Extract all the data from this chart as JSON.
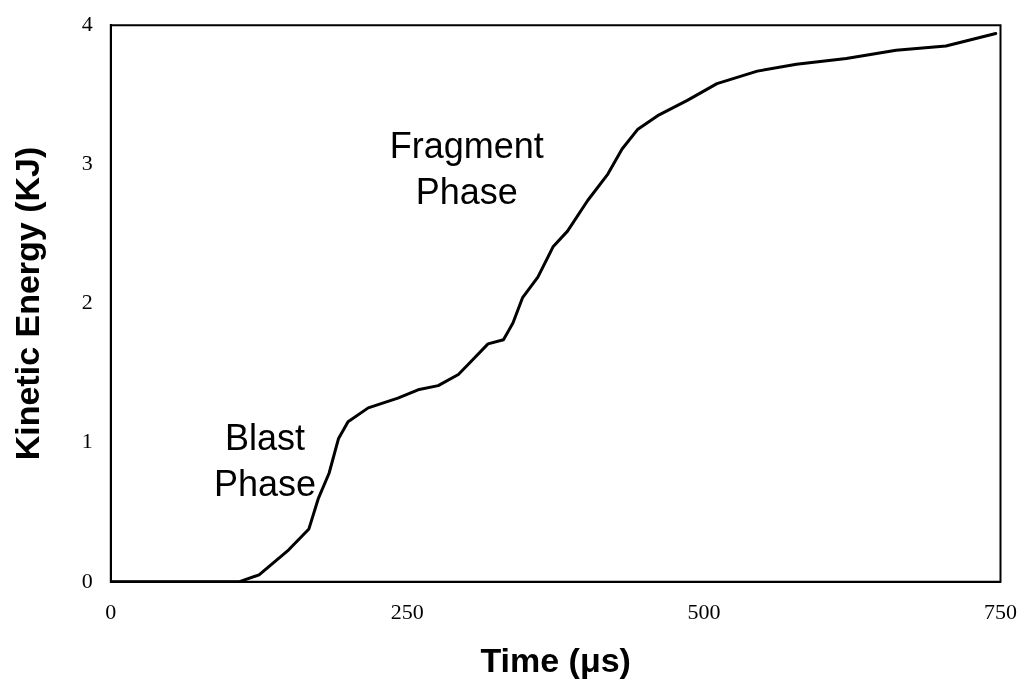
{
  "chart_data": {
    "type": "line",
    "xlabel": "Time (μs)",
    "ylabel": "Kinetic Energy (KJ)",
    "x": [
      0,
      108,
      125,
      150,
      167,
      175,
      184,
      192,
      200,
      217,
      242,
      259,
      276,
      293,
      301,
      318,
      331,
      339,
      347,
      360,
      373,
      385,
      402,
      419,
      431,
      444,
      461,
      486,
      511,
      545,
      578,
      620,
      662,
      704,
      746
    ],
    "series": [
      {
        "color": "#000000",
        "values": [
          0,
          0,
          0.05,
          0.23,
          0.38,
          0.6,
          0.78,
          1.03,
          1.15,
          1.25,
          1.32,
          1.38,
          1.41,
          1.49,
          1.56,
          1.71,
          1.74,
          1.86,
          2.04,
          2.19,
          2.41,
          2.52,
          2.74,
          2.93,
          3.11,
          3.25,
          3.35,
          3.46,
          3.58,
          3.67,
          3.72,
          3.76,
          3.82,
          3.85,
          3.94
        ]
      }
    ],
    "xlim": [
      0,
      750
    ],
    "xticks": [
      0,
      250,
      500,
      750
    ],
    "ylim": [
      0,
      4
    ],
    "yticks": [
      0,
      1,
      2,
      3,
      4
    ],
    "grid": false,
    "legend": false,
    "marker": "none",
    "line_style": "solid",
    "annotations": [
      "Blast Phase",
      "Fragment Phase"
    ]
  }
}
